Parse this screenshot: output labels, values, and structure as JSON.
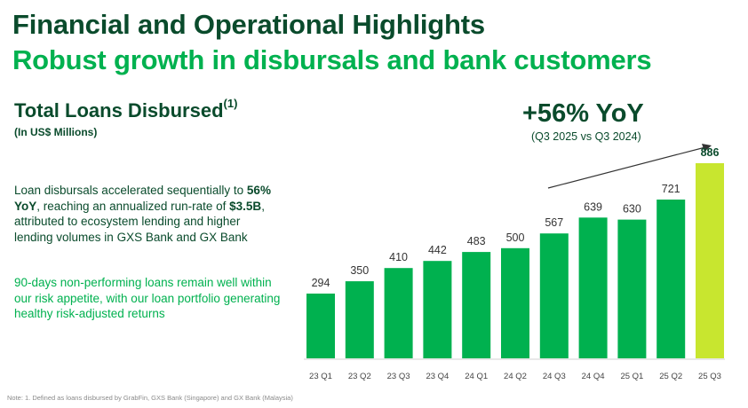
{
  "header": {
    "title_line1": "Financial and Operational Highlights",
    "title_line2": "Robust growth in disbursals and bank customers"
  },
  "section": {
    "title": "Total Loans Disbursed",
    "superscript": "(1)",
    "units": "(In US$ Millions)"
  },
  "body": {
    "para1_a": "Loan disbursals accelerated sequentially to ",
    "para1_b": "56% YoY",
    "para1_c": ", reaching an annualized run-rate of ",
    "para1_d": "$3.5B",
    "para1_e": ", attributed to ecosystem lending and higher lending volumes in GXS Bank and GX Bank",
    "para2": "90-days non-performing loans remain well within our risk appetite, with our loan portfolio generating healthy risk-adjusted returns"
  },
  "growth": {
    "headline": "+56% YoY",
    "comparison": "(Q3 2025 vs Q3 2024)"
  },
  "footnote": "Note: 1. Defined as loans disbursed by GrabFin, GXS Bank (Singapore) and GX Bank (Malaysia)",
  "colors": {
    "bar": "#00b14f",
    "highlight_bar": "#c8e62f",
    "dark_green": "#0a4b2c",
    "label": "#333333"
  },
  "chart_data": {
    "type": "bar",
    "title": "Total Loans Disbursed",
    "ylabel": "In US$ Millions",
    "categories": [
      "23 Q1",
      "23 Q2",
      "23 Q3",
      "23 Q4",
      "24 Q1",
      "24 Q2",
      "24 Q3",
      "24 Q4",
      "25 Q1",
      "25 Q2",
      "25 Q3"
    ],
    "values": [
      294,
      350,
      410,
      442,
      483,
      500,
      567,
      639,
      630,
      721,
      886
    ],
    "data_labels": [
      "294",
      "350",
      "410",
      "442",
      "483",
      "500",
      "567",
      "639",
      "630",
      "721",
      "886"
    ],
    "highlight_index": 10,
    "ylim": [
      0,
      886
    ],
    "grid": false,
    "annotation": "+56% YoY (Q3 2025 vs Q3 2024)"
  }
}
